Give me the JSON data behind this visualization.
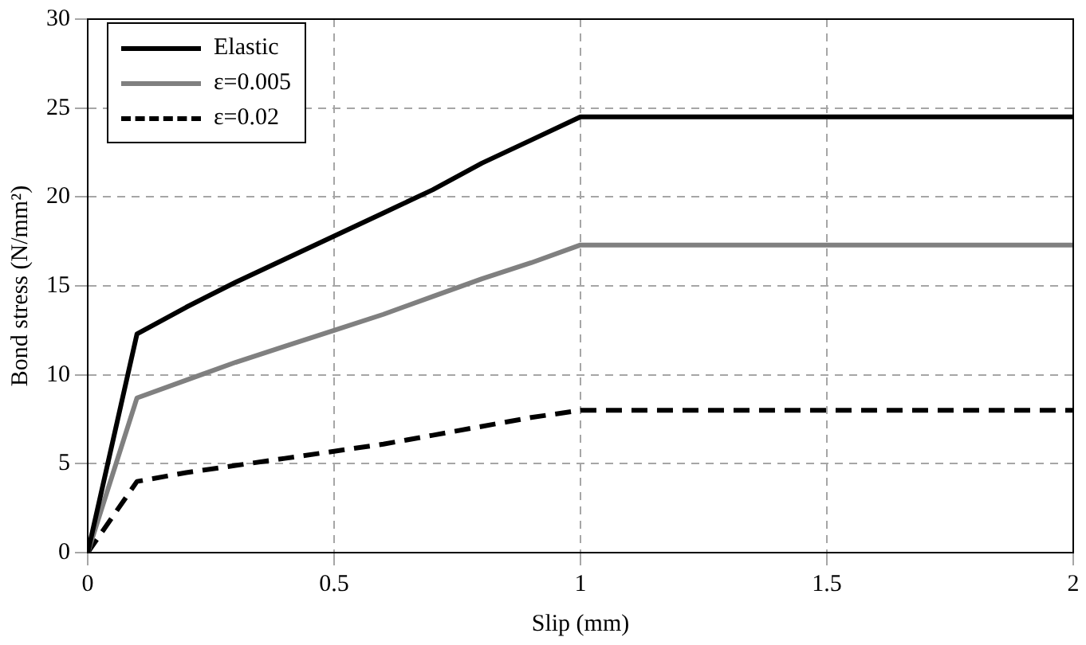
{
  "chart_data": {
    "type": "line",
    "xlabel": "Slip (mm)",
    "ylabel": "Bond stress (N/mm²)",
    "x": [
      0,
      0.1,
      0.2,
      0.3,
      0.4,
      0.5,
      0.6,
      0.7,
      0.8,
      0.9,
      1,
      2
    ],
    "series": [
      {
        "name": "Elastic",
        "color": "#000000",
        "line_style": "solid",
        "values": [
          0,
          12.3,
          13.8,
          15.2,
          16.5,
          17.8,
          19.1,
          20.4,
          21.9,
          23.2,
          24.5,
          24.5
        ]
      },
      {
        "name": "ε=0.005",
        "color": "#808080",
        "line_style": "solid",
        "values": [
          0,
          8.7,
          9.7,
          10.7,
          11.6,
          12.5,
          13.4,
          14.4,
          15.4,
          16.3,
          17.3,
          17.3
        ]
      },
      {
        "name": "ε=0.02",
        "color": "#000000",
        "line_style": "dashed",
        "values": [
          0,
          4,
          4.5,
          4.9,
          5.3,
          5.7,
          6.1,
          6.6,
          7.1,
          7.6,
          8,
          8
        ]
      }
    ],
    "xlim": [
      0,
      2
    ],
    "xticks": [
      0,
      0.5,
      1,
      1.5,
      2
    ],
    "ylim": [
      0,
      30
    ],
    "yticks": [
      0,
      5,
      10,
      15,
      20,
      25,
      30
    ],
    "grid": true,
    "legend": "top left",
    "marker": "none"
  }
}
